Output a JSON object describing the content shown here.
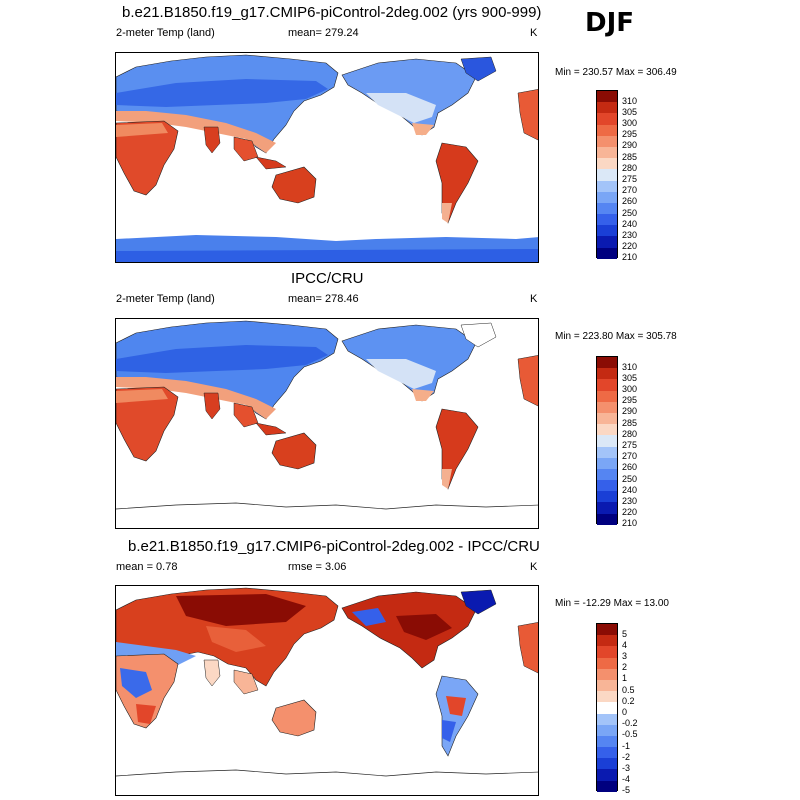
{
  "season": "DJF",
  "colors": {
    "abs_scale": [
      "#00007f",
      "#0a1ab0",
      "#1a3fd6",
      "#3560ea",
      "#5585f2",
      "#7aa6f6",
      "#a3c4f9",
      "#dbe8f7",
      "#fbd8c4",
      "#f8b597",
      "#f4906d",
      "#ee6a45",
      "#e2462a",
      "#c42a12",
      "#8a0c04"
    ],
    "diff_scale": [
      "#00007f",
      "#0a1ab0",
      "#1a3fd6",
      "#3560ea",
      "#5585f2",
      "#7aa6f6",
      "#a3c4f9",
      "#dbe8f7",
      "#fbd8c4",
      "#f8b597",
      "#f4906d",
      "#ee6a45",
      "#e2462a",
      "#c42a12",
      "#8a0c04"
    ]
  },
  "panels": [
    {
      "title": "b.e21.B1850.f19_g17.CMIP6-piControl-2deg.002 (yrs 900-999)",
      "left": "2-meter Temp (land)",
      "center": "mean= 279.24",
      "units": "K",
      "minmax": "Min = 230.57 Max = 306.49",
      "ticks": [
        "310",
        "305",
        "300",
        "295",
        "290",
        "285",
        "280",
        "275",
        "270",
        "260",
        "250",
        "240",
        "230",
        "220",
        "210"
      ]
    },
    {
      "title": "IPCC/CRU",
      "left": "2-meter Temp (land)",
      "center": "mean= 278.46",
      "units": "K",
      "minmax": "Min = 223.80 Max = 305.78",
      "ticks": [
        "310",
        "305",
        "300",
        "295",
        "290",
        "285",
        "280",
        "275",
        "270",
        "260",
        "250",
        "240",
        "230",
        "220",
        "210"
      ]
    },
    {
      "title": "b.e21.B1850.f19_g17.CMIP6-piControl-2deg.002 - IPCC/CRU",
      "left": "mean =   0.78",
      "center": "rmse =   3.06",
      "units": "K",
      "minmax": "Min = -12.29 Max =  13.00",
      "ticks": [
        "5",
        "4",
        "3",
        "2",
        "1",
        "0.5",
        "0.2",
        "0",
        "-0.2",
        "-0.5",
        "-1",
        "-2",
        "-3",
        "-4",
        "-5"
      ]
    }
  ]
}
